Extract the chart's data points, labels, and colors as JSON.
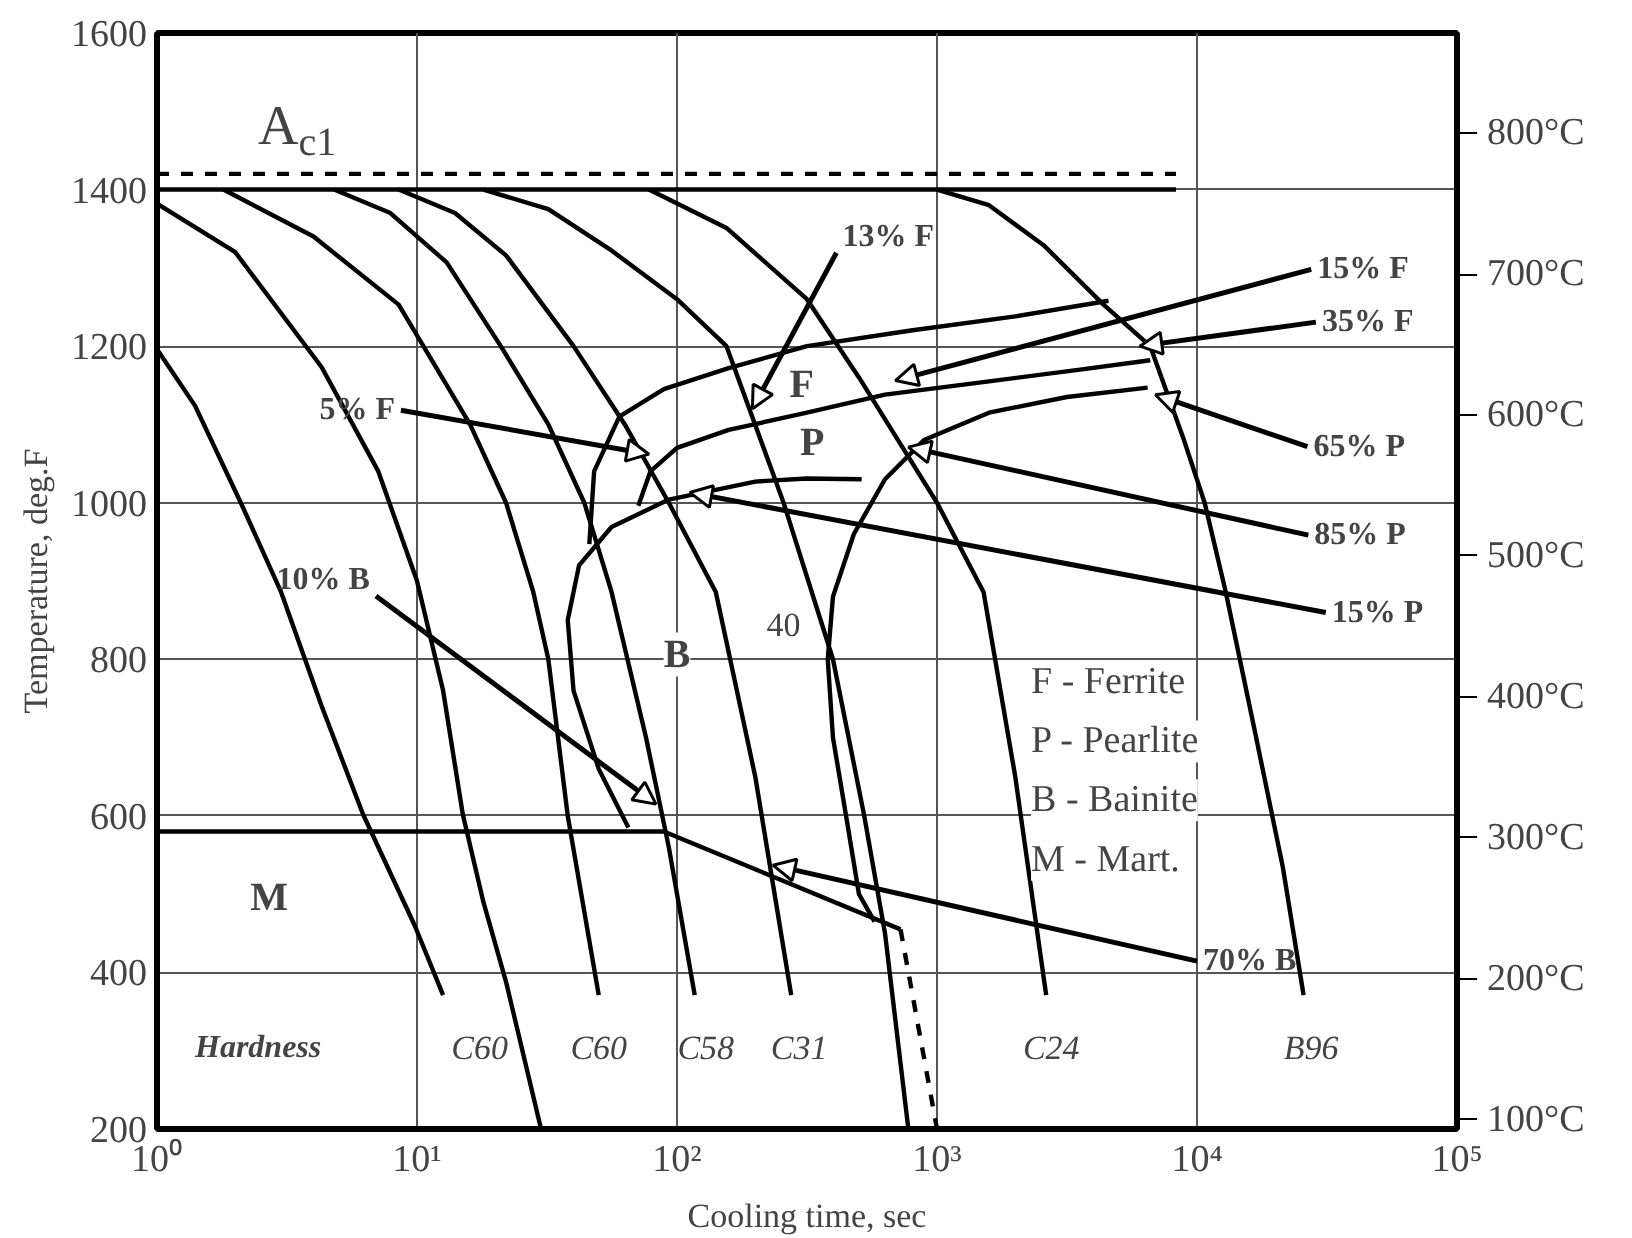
{
  "chart_data": {
    "type": "line",
    "xlabel": "Cooling time, sec",
    "ylabel": "Temperature, deg.F",
    "log": "x",
    "grid": true,
    "xlim": [
      1,
      100000
    ],
    "ylim": [
      200,
      1600
    ],
    "y2lim": [
      93.3,
      871.1
    ],
    "xticks": [
      {
        "value": 1,
        "label": "10⁰"
      },
      {
        "value": 10,
        "label": "10¹"
      },
      {
        "value": 100,
        "label": "10²"
      },
      {
        "value": 1000,
        "label": "10³"
      },
      {
        "value": 10000,
        "label": "10⁴"
      },
      {
        "value": 100000,
        "label": "10⁵"
      }
    ],
    "yticks": [
      200,
      400,
      600,
      800,
      1000,
      1200,
      1400,
      1600
    ],
    "y2ticks": [
      {
        "value": 100,
        "label": "100°C"
      },
      {
        "value": 200,
        "label": "200°C"
      },
      {
        "value": 300,
        "label": "300°C"
      },
      {
        "value": 400,
        "label": "400°C"
      },
      {
        "value": 500,
        "label": "500°C"
      },
      {
        "value": 600,
        "label": "600°C"
      },
      {
        "value": 700,
        "label": "700°C"
      },
      {
        "value": 800,
        "label": "800°C"
      }
    ],
    "series": [
      {
        "color": "#000000",
        "x": [
          1,
          1.4,
          2.1,
          3.0,
          4.3,
          6.2,
          9.8,
          12.6
        ],
        "values": [
          1196,
          1124,
          1000,
          886,
          740,
          602,
          460,
          371
        ]
      },
      {
        "color": "#000000",
        "x": [
          1,
          2.0,
          4.3,
          7.1,
          10,
          12.6,
          15,
          18,
          22,
          30
        ],
        "values": [
          1382,
          1320,
          1173,
          1040,
          900,
          760,
          602,
          490,
          388,
          200
        ]
      },
      {
        "color": "#000000",
        "x": [
          1.8,
          4.0,
          8.5,
          16,
          22,
          28,
          32,
          38,
          50
        ],
        "values": [
          1400,
          1340,
          1253,
          1100,
          1000,
          886,
          800,
          600,
          371
        ]
      },
      {
        "color": "#000000",
        "x": [
          4.8,
          7.9,
          13,
          21,
          32,
          44,
          56,
          76,
          93,
          117
        ],
        "values": [
          1400,
          1370,
          1307,
          1200,
          1100,
          1000,
          886,
          700,
          560,
          371
        ]
      },
      {
        "color": "#000000",
        "x": [
          8.5,
          14,
          22,
          40,
          63,
          93,
          141,
          200,
          275
        ],
        "values": [
          1400,
          1370,
          1316,
          1200,
          1100,
          1000,
          886,
          650,
          371
        ]
      },
      {
        "color": "#000000",
        "x": [
          18,
          32,
          55,
          100,
          155,
          257,
          398,
          525,
          631,
          776
        ],
        "values": [
          1400,
          1375,
          1324,
          1260,
          1200,
          1000,
          800,
          600,
          450,
          200
        ]
      },
      {
        "color": "#000000",
        "x": [
          78,
          155,
          316,
          501,
          708,
          1000,
          1510,
          2000,
          2630
        ],
        "values": [
          1400,
          1351,
          1260,
          1160,
          1080,
          1000,
          886,
          650,
          371
        ]
      },
      {
        "color": "#000000",
        "x": [
          1000,
          1585,
          2570,
          4370,
          6610,
          8910,
          10700,
          12900,
          16600,
          21400,
          25700
        ],
        "values": [
          1400,
          1380,
          1329,
          1253,
          1200,
          1080,
          1000,
          886,
          712,
          534,
          371
        ]
      },
      {
        "color": "#000000",
        "line_style": "dashed",
        "x": [
          1,
          8300
        ],
        "values": [
          1420,
          1420
        ]
      },
      {
        "color": "#000000",
        "x": [
          1,
          8300
        ],
        "values": [
          1400,
          1400
        ]
      },
      {
        "color": "#000000",
        "x": [
          46,
          48,
          60,
          89,
          158,
          316,
          794,
          2000,
          4570
        ],
        "values": [
          947,
          1040,
          1110,
          1145,
          1172,
          1200,
          1220,
          1238,
          1258
        ]
      },
      {
        "color": "#000000",
        "x": [
          71,
          79,
          100,
          158,
          316,
          631,
          1585,
          3550,
          6610
        ],
        "values": [
          996,
          1040,
          1070,
          1093,
          1115,
          1138,
          1155,
          1170,
          1182
        ]
      },
      {
        "color": "#000000",
        "x": [
          65,
          50,
          40,
          38,
          42,
          56,
          93,
          200,
          316,
          513
        ],
        "values": [
          585,
          660,
          760,
          850,
          920,
          969,
          1004,
          1027,
          1031,
          1030
        ]
      },
      {
        "color": "#000000",
        "x": [
          6460,
          3160,
          1585,
          891,
          631,
          479,
          398,
          380,
          398,
          447,
          501,
          575
        ],
        "values": [
          1147,
          1135,
          1115,
          1080,
          1030,
          960,
          880,
          800,
          700,
          600,
          500,
          465
        ]
      },
      {
        "color": "#000000",
        "x": [
          1,
          89,
          724
        ],
        "values": [
          580,
          580,
          455
        ]
      },
      {
        "color": "#000000",
        "line_style": "dashed",
        "x": [
          724,
          1000
        ],
        "values": [
          455,
          200
        ]
      }
    ],
    "annotations": [
      {
        "text": "13% F",
        "x": 195,
        "y": 1120
      },
      {
        "text": "5% F",
        "x": 78,
        "y": 1062
      },
      {
        "text": "10% B",
        "x": 83,
        "y": 615
      },
      {
        "text": "35% F",
        "x": 6030,
        "y": 1200
      },
      {
        "text": "65% P",
        "x": 6920,
        "y": 1138
      },
      {
        "text": "85% P",
        "x": 776,
        "y": 1071
      },
      {
        "text": "15% P",
        "x": 112,
        "y": 1013
      },
      {
        "text": "70% B",
        "x": 234,
        "y": 537
      },
      "15% F",
      "A$_{c1}$",
      "F",
      "P",
      "B",
      "M",
      "40",
      "C60",
      "C60",
      "C58",
      "C31",
      "C24",
      "B96",
      "Hardness",
      "F - Ferrite",
      "P - Pearlite",
      "B - Bainite",
      "M - Mart."
    ]
  }
}
